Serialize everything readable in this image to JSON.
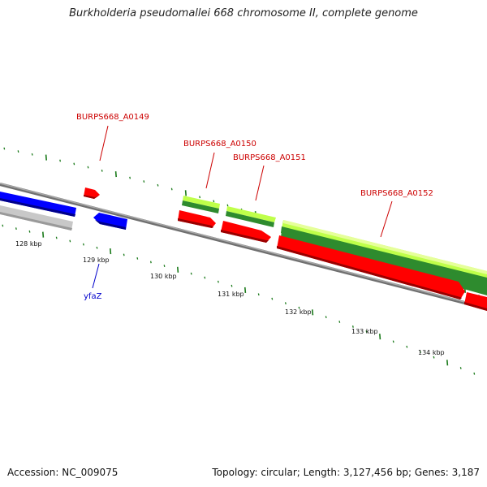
{
  "title": "Burkholderia pseudomallei 668 chromosome II, complete genome",
  "footer": {
    "accession": "Accession: NC_009075",
    "summary": "Topology: circular; Length: 3,127,456 bp; Genes: 3,187"
  },
  "colors": {
    "forward_gene": "#ff0000",
    "reverse_gene": "#0000ff",
    "cds_light": "#bfff4a",
    "cds_dark": "#2e8b2e",
    "backbone": "#888888",
    "grey_feature": "#c8c8c8",
    "tick": "#1a7a1a",
    "gene_label": "#cc0000",
    "blue_label": "#0000cc"
  },
  "scale_labels": [
    "128 kbp",
    "129 kbp",
    "130 kbp",
    "131 kbp",
    "132 kbp",
    "133 kbp",
    "134 kbp"
  ],
  "gene_labels": {
    "a0149": "BURPS668_A0149",
    "a0150": "BURPS668_A0150",
    "a0151": "BURPS668_A0151",
    "a0152": "BURPS668_A0152",
    "yfaz": "yfaZ"
  }
}
